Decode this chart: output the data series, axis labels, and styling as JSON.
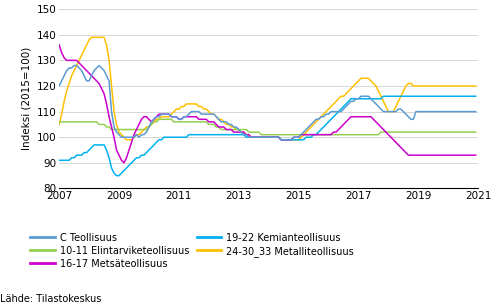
{
  "ylabel": "Indeksi (2015=100)",
  "ylim": [
    80,
    150
  ],
  "yticks": [
    80,
    90,
    100,
    110,
    120,
    130,
    140,
    150
  ],
  "xlim": [
    2007.0,
    2021.0
  ],
  "xticks": [
    2007,
    2009,
    2011,
    2013,
    2015,
    2017,
    2019,
    2021
  ],
  "source_text": "Lähde: Tilastokeskus",
  "legend_entries": [
    {
      "label": "C Teollisuus",
      "color": "#5B9BD5"
    },
    {
      "label": "10-11 Elintarviketeollisuus",
      "color": "#92D050"
    },
    {
      "label": "16-17 Metsäteollisuus",
      "color": "#CC00CC"
    },
    {
      "label": "19-22 Kemianteollisuus",
      "color": "#00B0F0"
    },
    {
      "label": "24-30_33 Metalliteollisuus",
      "color": "#FFC000"
    }
  ],
  "series": {
    "C_Teollisuus": {
      "color": "#5B9BD5",
      "data": [
        120,
        122,
        124,
        126,
        127,
        127,
        128,
        128,
        127,
        126,
        124,
        122,
        122,
        124,
        126,
        127,
        128,
        127,
        126,
        124,
        122,
        110,
        104,
        102,
        101,
        100,
        100,
        100,
        100,
        100,
        100,
        101,
        100,
        101,
        101,
        102,
        104,
        106,
        107,
        108,
        108,
        109,
        109,
        109,
        109,
        108,
        108,
        108,
        107,
        107,
        108,
        108,
        109,
        110,
        110,
        110,
        110,
        109,
        109,
        109,
        109,
        109,
        109,
        108,
        107,
        106,
        106,
        106,
        105,
        105,
        104,
        104,
        103,
        102,
        101,
        101,
        100,
        100,
        100,
        100,
        100,
        100,
        100,
        100,
        100,
        100,
        100,
        100,
        100,
        99,
        99,
        99,
        99,
        99,
        100,
        100,
        100,
        101,
        102,
        103,
        104,
        105,
        106,
        107,
        107,
        108,
        108,
        109,
        109,
        110,
        110,
        110,
        110,
        110,
        111,
        112,
        113,
        114,
        114,
        115,
        115,
        116,
        116,
        116,
        116,
        115,
        114,
        113,
        112,
        111,
        110,
        110,
        110,
        110,
        110,
        110,
        111,
        111,
        110,
        109,
        108,
        107,
        107,
        110
      ]
    },
    "Elintarvike": {
      "color": "#92D050",
      "data": [
        106,
        106,
        106,
        106,
        106,
        106,
        106,
        106,
        106,
        106,
        106,
        106,
        106,
        106,
        106,
        106,
        105,
        105,
        105,
        104,
        104,
        103,
        103,
        103,
        103,
        103,
        103,
        103,
        103,
        103,
        103,
        103,
        103,
        103,
        103,
        103,
        104,
        105,
        106,
        106,
        107,
        107,
        107,
        107,
        107,
        107,
        106,
        106,
        106,
        106,
        106,
        106,
        106,
        106,
        106,
        106,
        106,
        106,
        106,
        106,
        105,
        105,
        105,
        104,
        104,
        103,
        103,
        103,
        103,
        103,
        103,
        103,
        103,
        103,
        103,
        103,
        102,
        102,
        102,
        102,
        102,
        101,
        101,
        101,
        101,
        101,
        101,
        101,
        101,
        101,
        101,
        101,
        101,
        101,
        101,
        101,
        101,
        101,
        101,
        101,
        101,
        101,
        101,
        101,
        101,
        101,
        101,
        101,
        101,
        101,
        101,
        101,
        101,
        101,
        101,
        101,
        101,
        101,
        101,
        101,
        101,
        101,
        101,
        101,
        101,
        101,
        101,
        101,
        101,
        102,
        102,
        102,
        102,
        102,
        102,
        102,
        102,
        102,
        102,
        102,
        102,
        102,
        102,
        102
      ]
    },
    "Metsateollisuus": {
      "color": "#CC00CC",
      "data": [
        136,
        133,
        131,
        130,
        130,
        130,
        130,
        130,
        129,
        128,
        127,
        126,
        125,
        124,
        123,
        122,
        121,
        119,
        117,
        113,
        108,
        104,
        100,
        95,
        93,
        91,
        90,
        92,
        95,
        98,
        101,
        103,
        105,
        107,
        108,
        108,
        107,
        106,
        107,
        108,
        109,
        109,
        109,
        109,
        109,
        108,
        108,
        108,
        107,
        107,
        108,
        108,
        108,
        108,
        108,
        108,
        107,
        107,
        107,
        107,
        106,
        106,
        106,
        105,
        104,
        104,
        104,
        103,
        103,
        103,
        102,
        102,
        102,
        102,
        102,
        101,
        101,
        100,
        100,
        100,
        100,
        100,
        100,
        100,
        100,
        100,
        100,
        100,
        100,
        99,
        99,
        99,
        99,
        99,
        100,
        100,
        100,
        101,
        101,
        101,
        101,
        101,
        101,
        101,
        101,
        101,
        101,
        101,
        101,
        101,
        102,
        102,
        103,
        104,
        105,
        106,
        107,
        108,
        108,
        108,
        108,
        108,
        108,
        108,
        108,
        108,
        107,
        106,
        105,
        104,
        103,
        102,
        101,
        100,
        99,
        98,
        97,
        96,
        95,
        94,
        93,
        93,
        93,
        93
      ]
    },
    "Kemianteollisuus": {
      "color": "#00B0F0",
      "data": [
        91,
        91,
        91,
        91,
        91,
        92,
        92,
        93,
        93,
        93,
        94,
        94,
        95,
        96,
        97,
        97,
        97,
        97,
        97,
        95,
        92,
        88,
        86,
        85,
        85,
        86,
        87,
        88,
        89,
        90,
        91,
        92,
        92,
        93,
        93,
        94,
        95,
        96,
        97,
        98,
        99,
        99,
        100,
        100,
        100,
        100,
        100,
        100,
        100,
        100,
        100,
        100,
        101,
        101,
        101,
        101,
        101,
        101,
        101,
        101,
        101,
        101,
        101,
        101,
        101,
        101,
        101,
        101,
        101,
        101,
        101,
        101,
        101,
        101,
        101,
        100,
        100,
        100,
        100,
        100,
        100,
        100,
        100,
        100,
        100,
        100,
        100,
        100,
        100,
        99,
        99,
        99,
        99,
        99,
        99,
        99,
        99,
        99,
        99,
        100,
        100,
        100,
        101,
        101,
        102,
        103,
        104,
        105,
        106,
        107,
        108,
        109,
        110,
        111,
        112,
        113,
        114,
        115,
        115,
        115,
        115,
        115,
        115,
        115,
        115,
        115,
        115,
        115,
        115,
        115,
        116,
        116,
        116,
        116,
        116,
        116,
        116,
        116,
        116,
        116,
        116,
        116,
        116,
        116
      ]
    },
    "Metalliteollisuus": {
      "color": "#FFC000",
      "data": [
        105,
        109,
        114,
        118,
        121,
        124,
        126,
        128,
        130,
        132,
        134,
        136,
        138,
        139,
        139,
        139,
        139,
        139,
        139,
        136,
        130,
        120,
        110,
        105,
        102,
        101,
        100,
        99,
        99,
        99,
        100,
        101,
        101,
        102,
        103,
        104,
        104,
        105,
        106,
        107,
        107,
        108,
        108,
        108,
        108,
        109,
        110,
        111,
        111,
        112,
        112,
        113,
        113,
        113,
        113,
        113,
        112,
        112,
        111,
        111,
        110,
        109,
        109,
        108,
        107,
        107,
        106,
        105,
        105,
        104,
        104,
        103,
        103,
        102,
        102,
        101,
        101,
        100,
        100,
        100,
        100,
        100,
        100,
        100,
        100,
        100,
        100,
        100,
        100,
        99,
        99,
        99,
        99,
        99,
        99,
        99,
        99,
        100,
        101,
        102,
        103,
        104,
        105,
        106,
        107,
        108,
        109,
        110,
        111,
        112,
        113,
        114,
        115,
        116,
        116,
        117,
        118,
        119,
        120,
        121,
        122,
        123,
        123,
        123,
        123,
        122,
        121,
        120,
        118,
        116,
        114,
        112,
        110,
        110,
        110,
        112,
        114,
        116,
        118,
        120,
        121,
        121,
        120,
        120
      ]
    }
  }
}
